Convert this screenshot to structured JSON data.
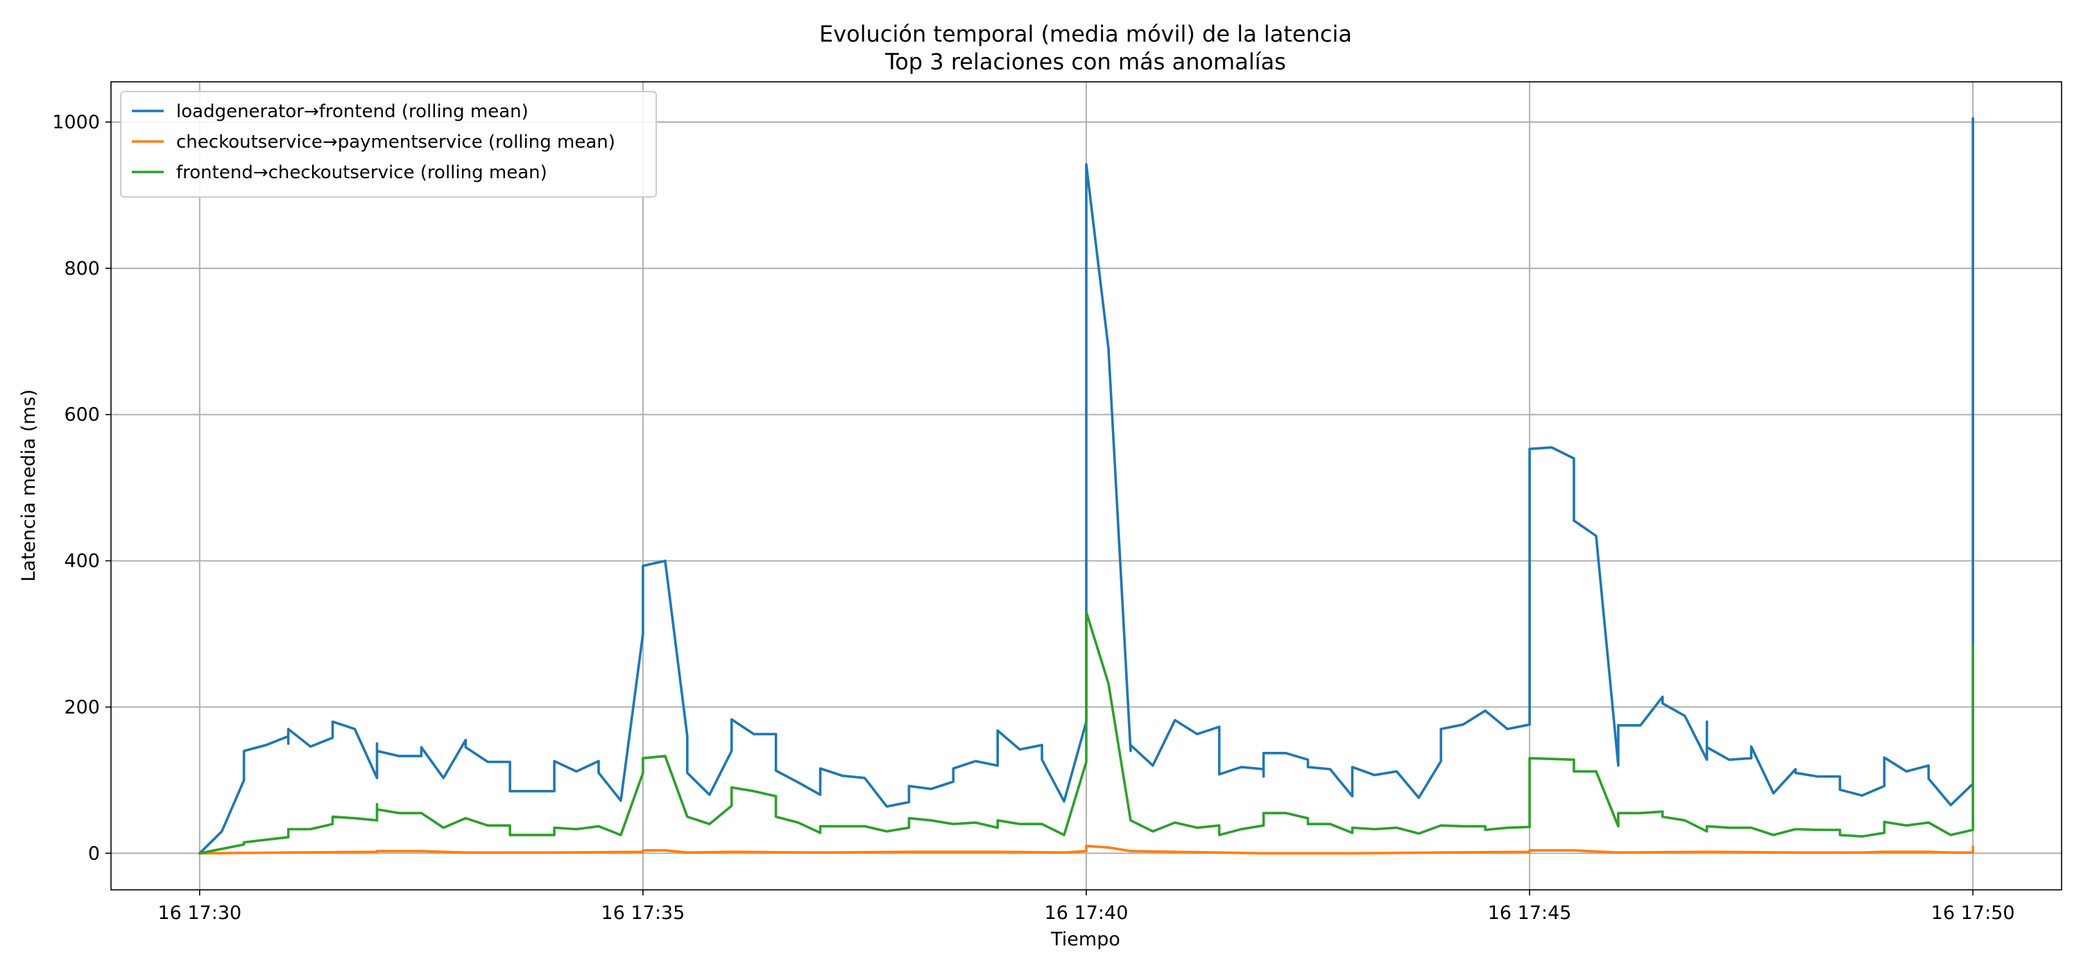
{
  "chart_data": {
    "type": "line",
    "title": "Evolución temporal (media móvil) de la latencia",
    "subtitle": "Top 3 relaciones con más anomalías",
    "xlabel": "Tiempo",
    "ylabel": "Latencia media (ms)",
    "x_tick_labels": [
      "16 17:30",
      "16 17:35",
      "16 17:40",
      "16 17:45",
      "16 17:50"
    ],
    "x_tick_values": [
      0,
      5,
      10,
      15,
      20
    ],
    "y_ticks": [
      0,
      200,
      400,
      600,
      800,
      1000
    ],
    "xlim": [
      -1,
      21
    ],
    "ylim": [
      -50,
      1055
    ],
    "x_unit": "minutes after 17:30",
    "grid": true,
    "legend_position": "upper-left",
    "series": [
      {
        "name": "loadgenerator→frontend (rolling mean)",
        "color": "#1f77b4",
        "points": [
          [
            0,
            0
          ],
          [
            0.25,
            30
          ],
          [
            0.5,
            100
          ],
          [
            0.5,
            140
          ],
          [
            0.75,
            148
          ],
          [
            1,
            160
          ],
          [
            1,
            150
          ],
          [
            1,
            170
          ],
          [
            1.25,
            146
          ],
          [
            1.5,
            158
          ],
          [
            1.5,
            180
          ],
          [
            1.75,
            170
          ],
          [
            2,
            103
          ],
          [
            2,
            150
          ],
          [
            2,
            140
          ],
          [
            2.25,
            133
          ],
          [
            2.5,
            133
          ],
          [
            2.5,
            145
          ],
          [
            2.75,
            103
          ],
          [
            3,
            155
          ],
          [
            3,
            145
          ],
          [
            3.25,
            125
          ],
          [
            3.5,
            125
          ],
          [
            3.5,
            85
          ],
          [
            3.75,
            85
          ],
          [
            4,
            85
          ],
          [
            4,
            126
          ],
          [
            4.25,
            112
          ],
          [
            4.5,
            126
          ],
          [
            4.5,
            110
          ],
          [
            4.75,
            72
          ],
          [
            5,
            300
          ],
          [
            5,
            393
          ],
          [
            5.25,
            400
          ],
          [
            5.5,
            160
          ],
          [
            5.5,
            110
          ],
          [
            5.75,
            80
          ],
          [
            6,
            140
          ],
          [
            6,
            183
          ],
          [
            6.25,
            163
          ],
          [
            6.5,
            163
          ],
          [
            6.5,
            113
          ],
          [
            6.75,
            97
          ],
          [
            7,
            80
          ],
          [
            7,
            116
          ],
          [
            7.25,
            106
          ],
          [
            7.5,
            103
          ],
          [
            7.75,
            64
          ],
          [
            8,
            70
          ],
          [
            8,
            92
          ],
          [
            8.25,
            88
          ],
          [
            8.5,
            98
          ],
          [
            8.5,
            116
          ],
          [
            8.75,
            126
          ],
          [
            9,
            120
          ],
          [
            9,
            168
          ],
          [
            9.25,
            142
          ],
          [
            9.5,
            148
          ],
          [
            9.5,
            128
          ],
          [
            9.75,
            71
          ],
          [
            10,
            180
          ],
          [
            10,
            942
          ],
          [
            10.25,
            690
          ],
          [
            10.5,
            140
          ],
          [
            10.5,
            148
          ],
          [
            10.75,
            120
          ],
          [
            11,
            182
          ],
          [
            11.25,
            163
          ],
          [
            11.5,
            173
          ],
          [
            11.5,
            108
          ],
          [
            11.75,
            118
          ],
          [
            12,
            115
          ],
          [
            12,
            105
          ],
          [
            12,
            137
          ],
          [
            12.25,
            137
          ],
          [
            12.5,
            128
          ],
          [
            12.5,
            118
          ],
          [
            12.75,
            115
          ],
          [
            13,
            78
          ],
          [
            13,
            118
          ],
          [
            13.25,
            107
          ],
          [
            13.5,
            112
          ],
          [
            13.75,
            76
          ],
          [
            14,
            126
          ],
          [
            14,
            170
          ],
          [
            14.25,
            176
          ],
          [
            14.5,
            195
          ],
          [
            14.75,
            170
          ],
          [
            15,
            176
          ],
          [
            15,
            553
          ],
          [
            15.25,
            555
          ],
          [
            15.5,
            540
          ],
          [
            15.5,
            455
          ],
          [
            15.75,
            434
          ],
          [
            16,
            120
          ],
          [
            16,
            175
          ],
          [
            16.25,
            175
          ],
          [
            16.5,
            214
          ],
          [
            16.5,
            205
          ],
          [
            16.75,
            188
          ],
          [
            17,
            128
          ],
          [
            17,
            180
          ],
          [
            17,
            145
          ],
          [
            17.25,
            128
          ],
          [
            17.5,
            130
          ],
          [
            17.5,
            146
          ],
          [
            17.75,
            82
          ],
          [
            18,
            115
          ],
          [
            18,
            110
          ],
          [
            18.25,
            105
          ],
          [
            18.5,
            105
          ],
          [
            18.5,
            87
          ],
          [
            18.75,
            79
          ],
          [
            19,
            92
          ],
          [
            19,
            131
          ],
          [
            19.25,
            112
          ],
          [
            19.5,
            120
          ],
          [
            19.5,
            102
          ],
          [
            19.75,
            66
          ],
          [
            20,
            95
          ],
          [
            20,
            1005
          ]
        ]
      },
      {
        "name": "checkoutservice→paymentservice (rolling mean)",
        "color": "#ff7f0e",
        "points": [
          [
            0,
            0
          ],
          [
            1,
            1
          ],
          [
            2,
            2
          ],
          [
            2,
            3
          ],
          [
            2.5,
            3
          ],
          [
            3,
            1
          ],
          [
            4,
            1
          ],
          [
            5,
            2
          ],
          [
            5,
            4
          ],
          [
            5.25,
            4
          ],
          [
            5.5,
            1
          ],
          [
            6,
            2
          ],
          [
            7,
            1
          ],
          [
            8,
            2
          ],
          [
            9,
            2
          ],
          [
            9.75,
            1
          ],
          [
            10,
            3
          ],
          [
            10,
            10
          ],
          [
            10.25,
            8
          ],
          [
            10.5,
            3
          ],
          [
            11,
            2
          ],
          [
            12,
            0
          ],
          [
            13,
            0
          ],
          [
            14,
            1
          ],
          [
            15,
            2
          ],
          [
            15,
            4
          ],
          [
            15.5,
            4
          ],
          [
            16,
            1
          ],
          [
            17,
            2
          ],
          [
            18,
            1
          ],
          [
            18.75,
            1
          ],
          [
            19,
            2
          ],
          [
            19.5,
            2
          ],
          [
            19.75,
            1
          ],
          [
            20,
            1
          ],
          [
            20,
            9
          ]
        ]
      },
      {
        "name": "frontend→checkoutservice (rolling mean)",
        "color": "#2ca02c",
        "points": [
          [
            0,
            0
          ],
          [
            0.5,
            12
          ],
          [
            0.5,
            15
          ],
          [
            1,
            22
          ],
          [
            1,
            33
          ],
          [
            1.25,
            33
          ],
          [
            1.5,
            40
          ],
          [
            1.5,
            50
          ],
          [
            1.75,
            48
          ],
          [
            2,
            45
          ],
          [
            2,
            67
          ],
          [
            2,
            60
          ],
          [
            2.25,
            55
          ],
          [
            2.5,
            55
          ],
          [
            2.75,
            35
          ],
          [
            3,
            48
          ],
          [
            3.25,
            38
          ],
          [
            3.5,
            38
          ],
          [
            3.5,
            25
          ],
          [
            3.75,
            25
          ],
          [
            4,
            25
          ],
          [
            4,
            35
          ],
          [
            4.25,
            33
          ],
          [
            4.5,
            37
          ],
          [
            4.75,
            25
          ],
          [
            5,
            110
          ],
          [
            5,
            130
          ],
          [
            5.25,
            133
          ],
          [
            5.5,
            50
          ],
          [
            5.75,
            40
          ],
          [
            6,
            65
          ],
          [
            6,
            90
          ],
          [
            6.25,
            85
          ],
          [
            6.5,
            78
          ],
          [
            6.5,
            50
          ],
          [
            6.75,
            42
          ],
          [
            7,
            28
          ],
          [
            7,
            37
          ],
          [
            7.5,
            37
          ],
          [
            7.75,
            30
          ],
          [
            8,
            35
          ],
          [
            8,
            48
          ],
          [
            8.25,
            45
          ],
          [
            8.5,
            40
          ],
          [
            8.75,
            42
          ],
          [
            9,
            35
          ],
          [
            9,
            45
          ],
          [
            9.25,
            40
          ],
          [
            9.5,
            40
          ],
          [
            9.75,
            25
          ],
          [
            10,
            125
          ],
          [
            10,
            330
          ],
          [
            10.25,
            232
          ],
          [
            10.5,
            45
          ],
          [
            10.75,
            30
          ],
          [
            11,
            42
          ],
          [
            11.25,
            35
          ],
          [
            11.5,
            38
          ],
          [
            11.5,
            25
          ],
          [
            11.75,
            33
          ],
          [
            12,
            38
          ],
          [
            12,
            55
          ],
          [
            12.25,
            55
          ],
          [
            12.5,
            48
          ],
          [
            12.5,
            40
          ],
          [
            12.75,
            40
          ],
          [
            13,
            28
          ],
          [
            13,
            35
          ],
          [
            13.25,
            33
          ],
          [
            13.5,
            35
          ],
          [
            13.75,
            27
          ],
          [
            14,
            38
          ],
          [
            14.25,
            37
          ],
          [
            14.5,
            37
          ],
          [
            14.5,
            32
          ],
          [
            14.75,
            35
          ],
          [
            15,
            36
          ],
          [
            15,
            130
          ],
          [
            15.5,
            128
          ],
          [
            15.5,
            112
          ],
          [
            15.75,
            112
          ],
          [
            16,
            37
          ],
          [
            16,
            55
          ],
          [
            16.25,
            55
          ],
          [
            16.5,
            57
          ],
          [
            16.5,
            50
          ],
          [
            16.75,
            45
          ],
          [
            17,
            30
          ],
          [
            17,
            37
          ],
          [
            17.25,
            35
          ],
          [
            17.5,
            35
          ],
          [
            17.75,
            25
          ],
          [
            18,
            33
          ],
          [
            18.25,
            32
          ],
          [
            18.5,
            32
          ],
          [
            18.5,
            25
          ],
          [
            18.75,
            23
          ],
          [
            19,
            28
          ],
          [
            19,
            43
          ],
          [
            19.25,
            38
          ],
          [
            19.5,
            42
          ],
          [
            19.75,
            25
          ],
          [
            20,
            32
          ],
          [
            20,
            285
          ]
        ]
      }
    ]
  }
}
